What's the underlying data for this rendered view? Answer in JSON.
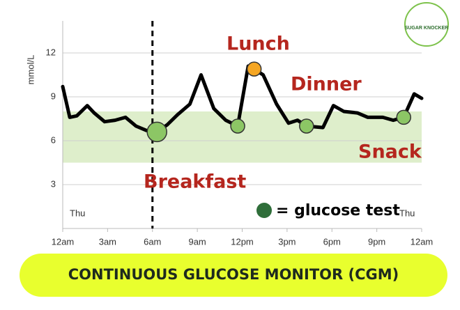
{
  "chart_data": {
    "type": "line",
    "y_label": "mmol/L",
    "xlim": [
      0,
      24
    ],
    "ylim": [
      0,
      14
    ],
    "xticks": [
      {
        "value": 0,
        "label": "12am"
      },
      {
        "value": 3,
        "label": "3am"
      },
      {
        "value": 6,
        "label": "6am"
      },
      {
        "value": 9,
        "label": "9am"
      },
      {
        "value": 12,
        "label": "12pm"
      },
      {
        "value": 15,
        "label": "3pm"
      },
      {
        "value": 18,
        "label": "6pm"
      },
      {
        "value": 21,
        "label": "9pm"
      },
      {
        "value": 24,
        "label": "12am"
      }
    ],
    "yticks": [
      3,
      6,
      9,
      12
    ],
    "grid": true,
    "target_range": [
      4.5,
      8
    ],
    "target_color": "#deeecb",
    "vline": 6,
    "series": [
      {
        "name": "glucose",
        "color": "#000000",
        "x": [
          0,
          0.47,
          0.94,
          1.64,
          2.1,
          2.8,
          3.5,
          4.2,
          4.9,
          5.6,
          6.3,
          7.0,
          7.7,
          8.5,
          9.25,
          10.1,
          10.9,
          11.7,
          12.4,
          12.8,
          13.4,
          14.3,
          15.1,
          15.7,
          16.3,
          17.4,
          18.1,
          18.8,
          19.7,
          20.4,
          21.4,
          22.1,
          22.8,
          23.5,
          24
        ],
        "values": [
          9.7,
          7.6,
          7.7,
          8.4,
          7.9,
          7.3,
          7.4,
          7.6,
          7.0,
          6.7,
          6.6,
          7.1,
          7.8,
          8.5,
          10.5,
          8.2,
          7.4,
          7.0,
          11.1,
          10.9,
          10.5,
          8.5,
          7.2,
          7.4,
          7.0,
          6.9,
          8.4,
          8.0,
          7.9,
          7.6,
          7.6,
          7.4,
          7.6,
          9.2,
          8.9
        ]
      },
      {
        "name": "glucose test",
        "color": "#2f6e3a",
        "x": [
          6.3,
          11.7,
          12.8,
          16.3,
          22.8
        ],
        "values": [
          6.6,
          7.0,
          10.9,
          7.0,
          7.6
        ],
        "colors": [
          "#8cc665",
          "#8cc665",
          "#f5a623",
          "#8cc665",
          "#8cc665"
        ]
      }
    ],
    "annotations": {
      "lunch": "Lunch",
      "dinner": "Dinner",
      "snack": "Snack",
      "breakfast": "Breakfast",
      "day_start": "Thu",
      "day_end": "Thu"
    },
    "legend_text": "= glucose test",
    "banner": "CONTINUOUS GLUCOSE MONITOR (CGM)",
    "logo": "SUGAR KNOCKER"
  }
}
